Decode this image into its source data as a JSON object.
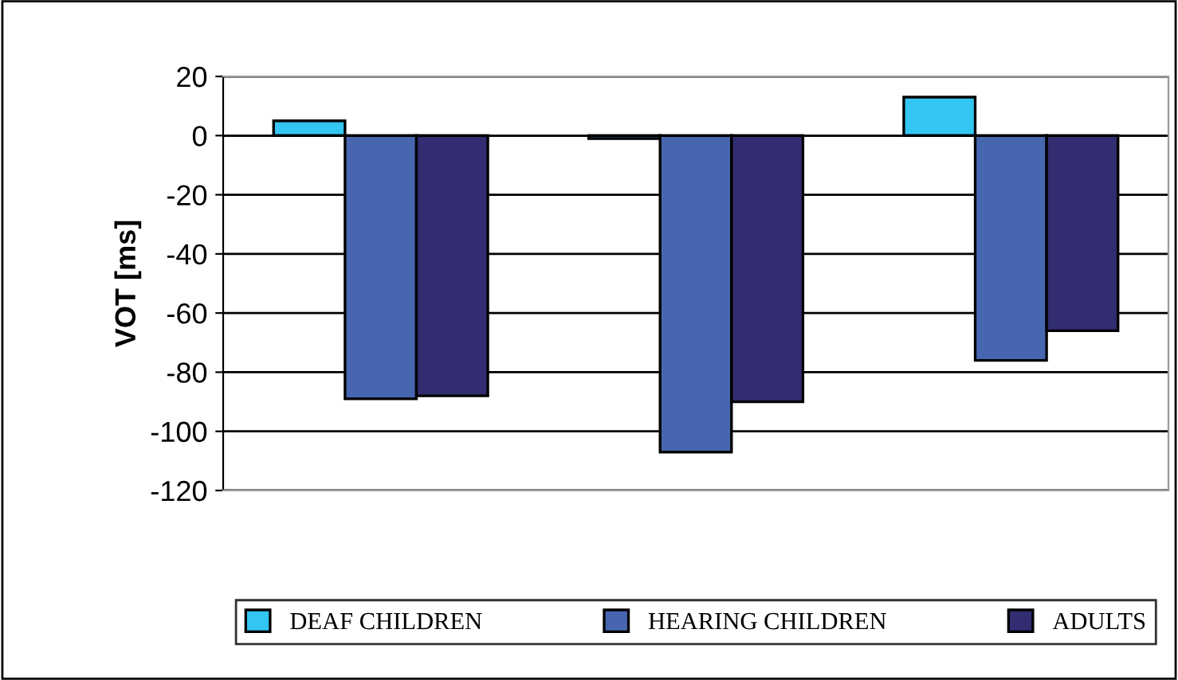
{
  "chart_data": {
    "type": "bar",
    "ylabel": "VOT [ms]",
    "categories": [
      null,
      null,
      null
    ],
    "series": [
      {
        "name": "DEAF CHILDREN",
        "color": "#33c6f2",
        "values": [
          5,
          -1,
          13
        ]
      },
      {
        "name": "HEARING CHILDREN",
        "color": "#4667b0",
        "values": [
          -89,
          -107,
          -76
        ]
      },
      {
        "name": "ADULTS",
        "color": "#312d70",
        "values": [
          -88,
          -90,
          -66
        ]
      }
    ],
    "ylim": [
      -120,
      20
    ],
    "yticks": [
      -120,
      -100,
      -80,
      -60,
      -40,
      -20,
      0,
      20
    ],
    "grid": "y",
    "legend": "bottom"
  }
}
